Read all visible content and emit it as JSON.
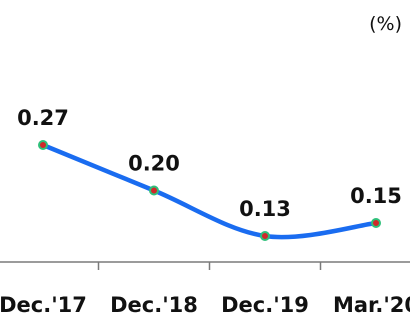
{
  "chart_data": {
    "type": "line",
    "unit": "(%)",
    "categories": [
      "Dec.'17",
      "Dec.'18",
      "Dec.'19",
      "Mar.'20"
    ],
    "values": [
      0.27,
      0.2,
      0.13,
      0.15
    ],
    "data_labels": [
      "0.27",
      "0.20",
      "0.13",
      "0.15"
    ],
    "ylim": [
      0.09,
      0.37
    ],
    "grid": false,
    "legend": "none",
    "colors": {
      "line": "#1a6cf0",
      "marker_fill": "#d0282a",
      "marker_stroke": "#2fc07a",
      "axis": "#7a7a7a"
    }
  }
}
